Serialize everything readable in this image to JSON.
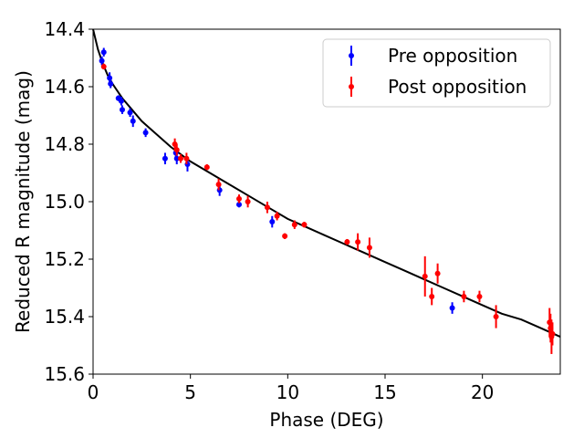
{
  "chart_data": {
    "type": "scatter",
    "title": "",
    "xlabel": "Phase (DEG)",
    "ylabel": "Reduced R magnitude (mag)",
    "xlim": [
      0,
      24
    ],
    "ylim": [
      15.6,
      14.4
    ],
    "y_inverted": true,
    "x_ticks": [
      "0",
      "5",
      "10",
      "15",
      "20"
    ],
    "x_tick_values": [
      0,
      5,
      10,
      15,
      20
    ],
    "y_ticks": [
      "14.4",
      "14.6",
      "14.8",
      "15.0",
      "15.2",
      "15.4",
      "15.6"
    ],
    "y_tick_values": [
      14.4,
      14.6,
      14.8,
      15.0,
      15.2,
      15.4,
      15.6
    ],
    "grid": false,
    "legend_position": "top-right",
    "series": [
      {
        "name": "Pre opposition",
        "color": "#0000ff",
        "points": [
          {
            "x": 0.45,
            "y": 14.51,
            "err": 0.015
          },
          {
            "x": 0.55,
            "y": 14.48,
            "err": 0.015
          },
          {
            "x": 0.85,
            "y": 14.57,
            "err": 0.02
          },
          {
            "x": 0.9,
            "y": 14.59,
            "err": 0.015
          },
          {
            "x": 1.3,
            "y": 14.64,
            "err": 0.01
          },
          {
            "x": 1.45,
            "y": 14.65,
            "err": 0.015
          },
          {
            "x": 1.5,
            "y": 14.68,
            "err": 0.015
          },
          {
            "x": 1.9,
            "y": 14.69,
            "err": 0.015
          },
          {
            "x": 2.05,
            "y": 14.72,
            "err": 0.02
          },
          {
            "x": 2.7,
            "y": 14.76,
            "err": 0.015
          },
          {
            "x": 3.7,
            "y": 14.85,
            "err": 0.02
          },
          {
            "x": 4.25,
            "y": 14.83,
            "err": 0.02
          },
          {
            "x": 4.3,
            "y": 14.85,
            "err": 0.02
          },
          {
            "x": 4.85,
            "y": 14.87,
            "err": 0.025
          },
          {
            "x": 6.5,
            "y": 14.96,
            "err": 0.02
          },
          {
            "x": 7.5,
            "y": 15.01,
            "err": 0.01
          },
          {
            "x": 9.2,
            "y": 15.07,
            "err": 0.02
          },
          {
            "x": 18.45,
            "y": 15.37,
            "err": 0.02
          }
        ]
      },
      {
        "name": "Post opposition",
        "color": "#ff0000",
        "points": [
          {
            "x": 0.55,
            "y": 14.53,
            "err": 0.01
          },
          {
            "x": 4.2,
            "y": 14.8,
            "err": 0.02
          },
          {
            "x": 4.3,
            "y": 14.82,
            "err": 0.02
          },
          {
            "x": 4.5,
            "y": 14.85,
            "err": 0.015
          },
          {
            "x": 4.8,
            "y": 14.85,
            "err": 0.02
          },
          {
            "x": 5.85,
            "y": 14.88,
            "err": 0.01
          },
          {
            "x": 6.45,
            "y": 14.94,
            "err": 0.02
          },
          {
            "x": 7.5,
            "y": 14.99,
            "err": 0.015
          },
          {
            "x": 7.95,
            "y": 15.0,
            "err": 0.02
          },
          {
            "x": 8.95,
            "y": 15.02,
            "err": 0.02
          },
          {
            "x": 9.45,
            "y": 15.05,
            "err": 0.015
          },
          {
            "x": 9.85,
            "y": 15.12,
            "err": 0.01
          },
          {
            "x": 10.35,
            "y": 15.08,
            "err": 0.015
          },
          {
            "x": 10.85,
            "y": 15.08,
            "err": 0.01
          },
          {
            "x": 13.05,
            "y": 15.14,
            "err": 0.01
          },
          {
            "x": 13.6,
            "y": 15.14,
            "err": 0.03
          },
          {
            "x": 14.2,
            "y": 15.16,
            "err": 0.035
          },
          {
            "x": 17.05,
            "y": 15.26,
            "err": 0.07
          },
          {
            "x": 17.4,
            "y": 15.33,
            "err": 0.03
          },
          {
            "x": 17.7,
            "y": 15.25,
            "err": 0.035
          },
          {
            "x": 19.05,
            "y": 15.33,
            "err": 0.02
          },
          {
            "x": 19.85,
            "y": 15.33,
            "err": 0.02
          },
          {
            "x": 20.7,
            "y": 15.4,
            "err": 0.04
          },
          {
            "x": 23.45,
            "y": 15.42,
            "err": 0.05
          },
          {
            "x": 23.5,
            "y": 15.44,
            "err": 0.05
          },
          {
            "x": 23.55,
            "y": 15.47,
            "err": 0.06
          },
          {
            "x": 23.6,
            "y": 15.46,
            "err": 0.04
          }
        ]
      }
    ],
    "fit_curve": {
      "name": "model fit",
      "color": "#000000",
      "x": [
        0,
        0.25,
        0.5,
        0.75,
        1,
        1.5,
        2,
        2.5,
        3,
        4,
        5,
        6,
        7,
        8,
        9,
        10,
        11,
        12,
        13,
        14,
        15,
        16,
        17,
        18,
        19,
        20,
        21,
        22,
        23,
        24
      ],
      "y": [
        14.4,
        14.47,
        14.52,
        14.56,
        14.59,
        14.64,
        14.68,
        14.72,
        14.75,
        14.81,
        14.86,
        14.9,
        14.94,
        14.98,
        15.02,
        15.06,
        15.09,
        15.12,
        15.15,
        15.18,
        15.21,
        15.24,
        15.27,
        15.3,
        15.33,
        15.36,
        15.39,
        15.41,
        15.44,
        15.47
      ]
    }
  }
}
